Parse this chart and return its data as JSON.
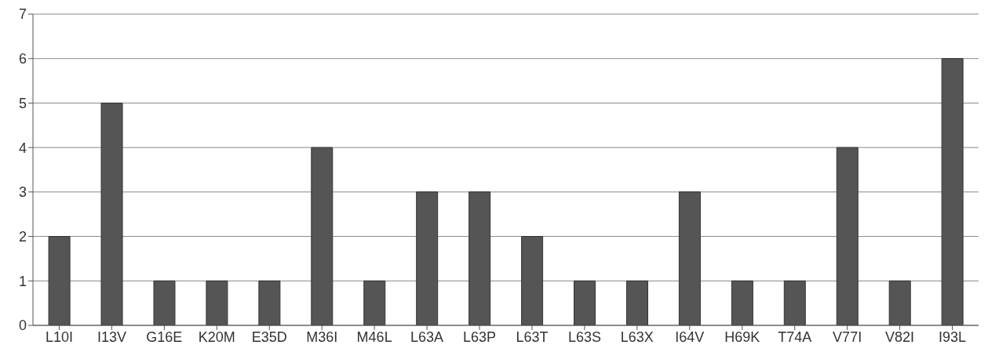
{
  "chart_data": {
    "type": "bar",
    "categories": [
      "L10I",
      "I13V",
      "G16E",
      "K20M",
      "E35D",
      "M36I",
      "M46L",
      "L63A",
      "L63P",
      "L63T",
      "L63S",
      "L63X",
      "I64V",
      "H69K",
      "T74A",
      "V77I",
      "V82I",
      "I93L"
    ],
    "values": [
      2,
      5,
      1,
      1,
      1,
      4,
      1,
      3,
      3,
      2,
      1,
      1,
      3,
      1,
      1,
      4,
      1,
      6
    ],
    "color": "#555555",
    "ylim": [
      0,
      7
    ],
    "yticks": [
      0,
      1,
      2,
      3,
      4,
      5,
      6,
      7
    ],
    "grid": "y"
  }
}
